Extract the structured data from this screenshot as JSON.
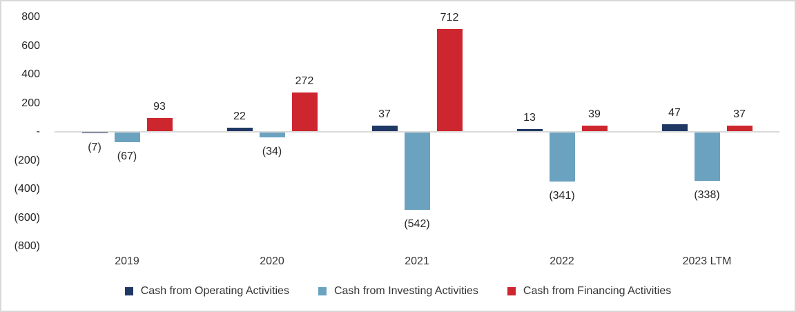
{
  "chart_data": {
    "type": "bar",
    "title": "",
    "categories": [
      "2019",
      "2020",
      "2021",
      "2022",
      "2023 LTM"
    ],
    "series": [
      {
        "name": "Cash from Operating Activities",
        "slug": "operating",
        "color": "#1F3864",
        "values": [
          -7,
          22,
          37,
          13,
          47
        ]
      },
      {
        "name": "Cash from Investing Activities",
        "slug": "investing",
        "color": "#6AA2C0",
        "values": [
          -67,
          -34,
          -542,
          -341,
          -338
        ]
      },
      {
        "name": "Cash from Financing Activities",
        "slug": "financing",
        "color": "#CE262E",
        "values": [
          93,
          272,
          712,
          39,
          37
        ]
      }
    ],
    "value_labels": [
      [
        "(7)",
        "22",
        "37",
        "13",
        "47"
      ],
      [
        "(67)",
        "(34)",
        "(542)",
        "(341)",
        "(338)"
      ],
      [
        "93",
        "272",
        "712",
        "39",
        "37"
      ]
    ],
    "y_axis": {
      "min": -800,
      "max": 800,
      "tick_step": 200,
      "tick_labels_top_to_bottom": [
        "800",
        "600",
        "400",
        "200",
        "-",
        "(200)",
        "(400)",
        "(600)",
        "(800)"
      ]
    },
    "grid": false,
    "legend_position": "bottom",
    "colors": {
      "axis_line": "#D9D9D9",
      "text": "#262626",
      "border": "#D8D8D8",
      "background": "#FFFFFF"
    }
  }
}
